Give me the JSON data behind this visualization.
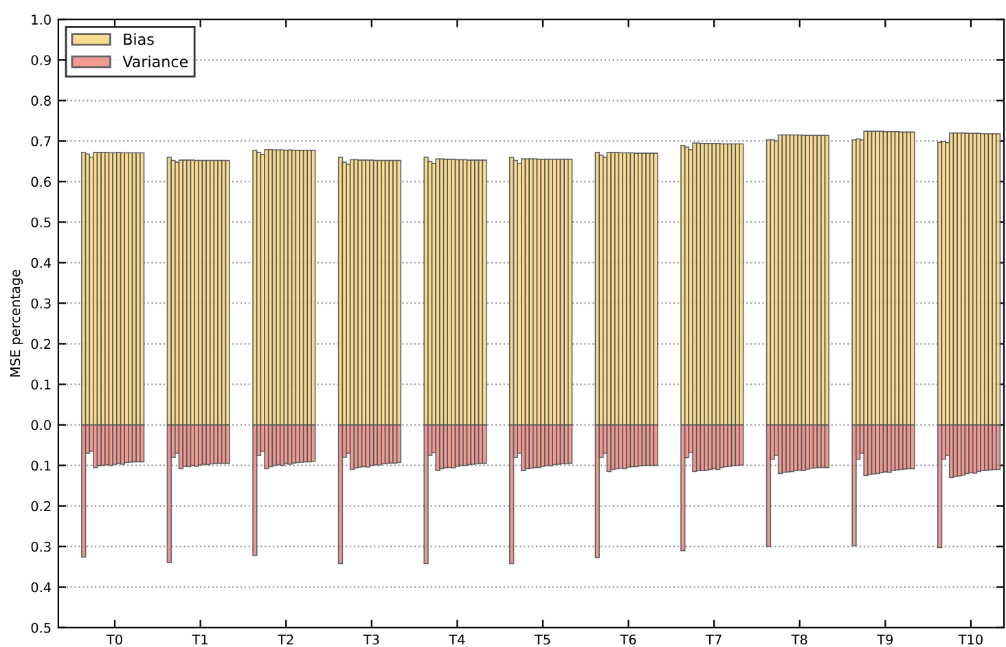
{
  "chart_data": {
    "type": "bar",
    "ylabel": "MSE percentage",
    "grid": "y",
    "legend": "top left",
    "categories": [
      null,
      null,
      null,
      null,
      null,
      null,
      null,
      null,
      "T0",
      null,
      null,
      null,
      null,
      null,
      null,
      null,
      null,
      null,
      null,
      null,
      null,
      null,
      null,
      null,
      null,
      null,
      null,
      null,
      null,
      null,
      "T1",
      null,
      null,
      null,
      null,
      null,
      null,
      null,
      null,
      null,
      null,
      null,
      null,
      null,
      null,
      null,
      null,
      null,
      null,
      null,
      null,
      null,
      "T2",
      null,
      null,
      null,
      null,
      null,
      null,
      null,
      null,
      null,
      null,
      null,
      null,
      null,
      null,
      null,
      null,
      null,
      null,
      null,
      null,
      null,
      "T3",
      null,
      null,
      null,
      null,
      null,
      null,
      null,
      null,
      null,
      null,
      null,
      null,
      null,
      null,
      null,
      null,
      null,
      null,
      null,
      null,
      null,
      "T4",
      null,
      null,
      null,
      null,
      null,
      null,
      null,
      null,
      null,
      null,
      null,
      null,
      null,
      null,
      null,
      null,
      null,
      null,
      null,
      null,
      null,
      "T5",
      null,
      null,
      null,
      null,
      null,
      null,
      null,
      null,
      null,
      null,
      null,
      null,
      null,
      null,
      null,
      null,
      null,
      null,
      null,
      null,
      null,
      "T6",
      null,
      null,
      null,
      null,
      null,
      null,
      null,
      null,
      null,
      null,
      null,
      null,
      null,
      null,
      null,
      null,
      null,
      null,
      null,
      null,
      null,
      "T7",
      null,
      null,
      null,
      null,
      null,
      null,
      null,
      null,
      null,
      null,
      null,
      null,
      null,
      null,
      null,
      null,
      null,
      null,
      null,
      null,
      null,
      "T8",
      null,
      null,
      null,
      null,
      null,
      null,
      null,
      null,
      null,
      null,
      null,
      null,
      null,
      null,
      null,
      null,
      null,
      null,
      null,
      null,
      null,
      "T9",
      null,
      null,
      null,
      null,
      null,
      null,
      null,
      null,
      null,
      null,
      null,
      null,
      null,
      null,
      null,
      null,
      null,
      null,
      null,
      null,
      null,
      "T10",
      null,
      null,
      null,
      null,
      null,
      null,
      null
    ],
    "ylim": [
      -0.5,
      1.0
    ],
    "yticks": [
      {
        "value": -0.5,
        "label": "0.5"
      },
      {
        "value": -0.4,
        "label": "0.4"
      },
      {
        "value": -0.3,
        "label": "0.3"
      },
      {
        "value": -0.2,
        "label": "0.2"
      },
      {
        "value": -0.1,
        "label": "0.1"
      },
      {
        "value": 0,
        "label": "0.0"
      },
      {
        "value": 0.1,
        "label": "0.1"
      },
      {
        "value": 0.2,
        "label": "0.2"
      },
      {
        "value": 0.3,
        "label": "0.3"
      },
      {
        "value": 0.4,
        "label": "0.4"
      },
      {
        "value": 0.5,
        "label": "0.5"
      },
      {
        "value": 0.6,
        "label": "0.6"
      },
      {
        "value": 0.7,
        "label": "0.7"
      },
      {
        "value": 0.8,
        "label": "0.8"
      },
      {
        "value": 0.9,
        "label": "0.9"
      },
      {
        "value": 1.0,
        "label": "1.0"
      }
    ],
    "series": [
      {
        "name": "Bias",
        "color": "#f9d984",
        "values": [
          0.672,
          0.668,
          0.66,
          0.672,
          0.672,
          0.672,
          0.672,
          0.671,
          0.671,
          0.672,
          0.671,
          0.671,
          0.671,
          0.671,
          0.671,
          0.671,
          null,
          null,
          null,
          null,
          null,
          null,
          0.66,
          0.652,
          0.648,
          0.653,
          0.653,
          0.653,
          0.653,
          0.652,
          0.652,
          0.652,
          0.652,
          0.652,
          0.652,
          0.652,
          0.652,
          0.652,
          null,
          null,
          null,
          null,
          null,
          null,
          0.677,
          0.672,
          0.667,
          0.679,
          0.679,
          0.678,
          0.678,
          0.678,
          0.677,
          0.678,
          0.677,
          0.677,
          0.677,
          0.677,
          0.677,
          0.677,
          null,
          null,
          null,
          null,
          null,
          null,
          0.66,
          0.648,
          0.643,
          0.654,
          0.654,
          0.653,
          0.653,
          0.653,
          0.653,
          0.652,
          0.652,
          0.652,
          0.652,
          0.652,
          0.652,
          0.652,
          null,
          null,
          null,
          null,
          null,
          null,
          0.66,
          0.65,
          0.645,
          0.656,
          0.656,
          0.655,
          0.655,
          0.655,
          0.654,
          0.654,
          0.654,
          0.653,
          0.653,
          0.653,
          0.653,
          0.653,
          null,
          null,
          null,
          null,
          null,
          null,
          0.66,
          0.652,
          0.645,
          0.656,
          0.656,
          0.656,
          0.656,
          0.655,
          0.655,
          0.655,
          0.655,
          0.655,
          0.655,
          0.655,
          0.655,
          0.655,
          null,
          null,
          null,
          null,
          null,
          null,
          0.672,
          0.665,
          0.66,
          0.672,
          0.672,
          0.672,
          0.671,
          0.671,
          0.671,
          0.671,
          0.67,
          0.67,
          0.67,
          0.67,
          0.67,
          0.67,
          null,
          null,
          null,
          null,
          null,
          null,
          0.689,
          0.685,
          0.679,
          0.695,
          0.695,
          0.694,
          0.694,
          0.694,
          0.694,
          0.694,
          0.693,
          0.693,
          0.693,
          0.693,
          0.693,
          0.693,
          null,
          null,
          null,
          null,
          null,
          null,
          0.703,
          0.703,
          0.7,
          0.715,
          0.715,
          0.715,
          0.715,
          0.715,
          0.715,
          0.714,
          0.714,
          0.714,
          0.714,
          0.714,
          0.714,
          0.714,
          null,
          null,
          null,
          null,
          null,
          null,
          0.703,
          0.705,
          0.703,
          0.724,
          0.724,
          0.724,
          0.724,
          0.724,
          0.723,
          0.723,
          0.723,
          0.723,
          0.722,
          0.722,
          0.722,
          0.722,
          null,
          null,
          null,
          null,
          null,
          null,
          0.697,
          0.699,
          0.696,
          0.72,
          0.72,
          0.72,
          0.72,
          0.719,
          0.719,
          0.719,
          0.719,
          0.718,
          0.718,
          0.718,
          0.718,
          0.718
        ]
      },
      {
        "name": "Variance",
        "color": "#f08e88",
        "values": [
          -0.326,
          -0.07,
          -0.065,
          -0.105,
          -0.1,
          -0.1,
          -0.098,
          -0.1,
          -0.097,
          -0.095,
          -0.097,
          -0.093,
          -0.092,
          -0.091,
          -0.091,
          -0.091,
          null,
          null,
          null,
          null,
          null,
          null,
          -0.34,
          -0.08,
          -0.07,
          -0.108,
          -0.102,
          -0.103,
          -0.1,
          -0.102,
          -0.099,
          -0.097,
          -0.098,
          -0.096,
          -0.095,
          -0.095,
          -0.095,
          -0.095,
          null,
          null,
          null,
          null,
          null,
          null,
          -0.322,
          -0.075,
          -0.065,
          -0.108,
          -0.103,
          -0.1,
          -0.098,
          -0.1,
          -0.095,
          -0.097,
          -0.094,
          -0.093,
          -0.092,
          -0.091,
          -0.091,
          -0.09,
          null,
          null,
          null,
          null,
          null,
          null,
          -0.342,
          -0.08,
          -0.07,
          -0.11,
          -0.106,
          -0.104,
          -0.103,
          -0.104,
          -0.1,
          -0.098,
          -0.099,
          -0.096,
          -0.095,
          -0.094,
          -0.094,
          -0.093,
          null,
          null,
          null,
          null,
          null,
          null,
          -0.342,
          -0.075,
          -0.068,
          -0.113,
          -0.108,
          -0.106,
          -0.105,
          -0.106,
          -0.102,
          -0.1,
          -0.1,
          -0.098,
          -0.097,
          -0.096,
          -0.095,
          -0.095,
          null,
          null,
          null,
          null,
          null,
          null,
          -0.342,
          -0.08,
          -0.07,
          -0.113,
          -0.108,
          -0.107,
          -0.105,
          -0.105,
          -0.102,
          -0.1,
          -0.101,
          -0.098,
          -0.097,
          -0.096,
          -0.096,
          -0.095,
          null,
          null,
          null,
          null,
          null,
          null,
          -0.327,
          -0.08,
          -0.07,
          -0.115,
          -0.11,
          -0.108,
          -0.107,
          -0.108,
          -0.104,
          -0.103,
          -0.103,
          -0.101,
          -0.1,
          -0.1,
          -0.1,
          -0.1,
          null,
          null,
          null,
          null,
          null,
          null,
          -0.31,
          -0.081,
          -0.068,
          -0.115,
          -0.113,
          -0.113,
          -0.112,
          -0.11,
          -0.108,
          -0.11,
          -0.105,
          -0.103,
          -0.102,
          -0.1,
          -0.1,
          -0.099,
          null,
          null,
          null,
          null,
          null,
          null,
          -0.3,
          -0.085,
          -0.075,
          -0.12,
          -0.117,
          -0.116,
          -0.115,
          -0.113,
          -0.112,
          -0.113,
          -0.109,
          -0.107,
          -0.106,
          -0.105,
          -0.105,
          -0.105,
          null,
          null,
          null,
          null,
          null,
          null,
          -0.298,
          -0.085,
          -0.07,
          -0.125,
          -0.122,
          -0.121,
          -0.12,
          -0.118,
          -0.116,
          -0.117,
          -0.113,
          -0.111,
          -0.11,
          -0.109,
          -0.108,
          -0.108,
          null,
          null,
          null,
          null,
          null,
          null,
          -0.303,
          -0.085,
          -0.075,
          -0.13,
          -0.127,
          -0.126,
          -0.124,
          -0.12,
          -0.118,
          -0.119,
          -0.115,
          -0.113,
          -0.112,
          -0.111,
          -0.11,
          -0.11
        ]
      }
    ]
  }
}
